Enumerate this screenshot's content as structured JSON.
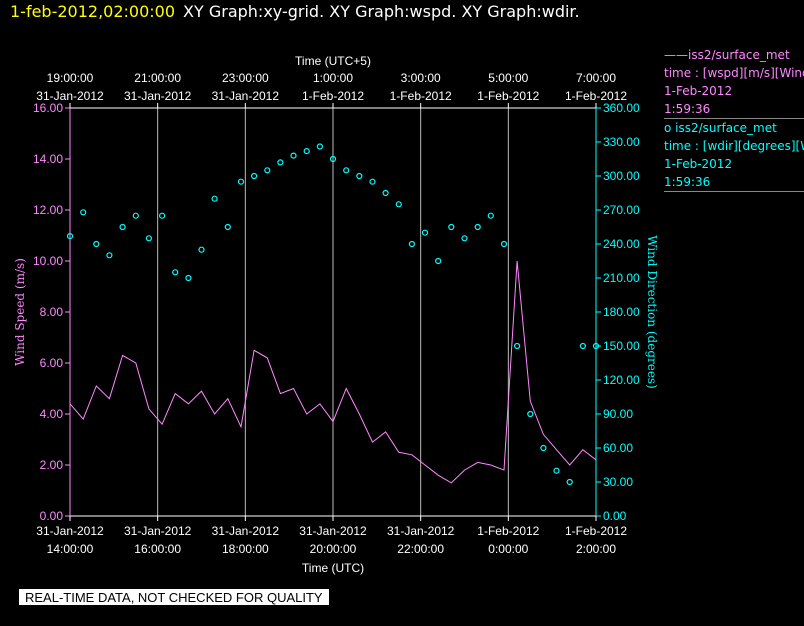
{
  "header": {
    "date": "1-feb-2012,02:00:00",
    "graphs": "XY Graph:xy-grid.  XY Graph:wspd.  XY Graph:wdir."
  },
  "legend": {
    "wspd": {
      "series": "——iss2/surface_met",
      "desc": "time : [wspd][m/s][Wind Speed]",
      "date": "1-Feb-2012",
      "time": "1:59:36",
      "color": "#ff88ff"
    },
    "wdir": {
      "series": "o  iss2/surface_met",
      "desc": "time : [wdir][degrees][Wind Direction]",
      "date": "1-Feb-2012",
      "time": "1:59:36",
      "color": "#00ffff"
    }
  },
  "banner": "REAL-TIME DATA, NOT CHECKED FOR QUALITY",
  "chart_data": {
    "type": "line",
    "top_axis": {
      "label": "Time (UTC+5)",
      "ticks": [
        {
          "time": "19:00:00",
          "date": "31-Jan-2012"
        },
        {
          "time": "21:00:00",
          "date": "31-Jan-2012"
        },
        {
          "time": "23:00:00",
          "date": "31-Jan-2012"
        },
        {
          "time": "1:00:00",
          "date": "1-Feb-2012"
        },
        {
          "time": "3:00:00",
          "date": "1-Feb-2012"
        },
        {
          "time": "5:00:00",
          "date": "1-Feb-2012"
        },
        {
          "time": "7:00:00",
          "date": "1-Feb-2012"
        }
      ]
    },
    "bottom_axis": {
      "label": "Time (UTC)",
      "ticks": [
        {
          "date": "31-Jan-2012",
          "time": "14:00:00"
        },
        {
          "date": "31-Jan-2012",
          "time": "16:00:00"
        },
        {
          "date": "31-Jan-2012",
          "time": "18:00:00"
        },
        {
          "date": "31-Jan-2012",
          "time": "20:00:00"
        },
        {
          "date": "31-Jan-2012",
          "time": "22:00:00"
        },
        {
          "date": "1-Feb-2012",
          "time": "0:00:00"
        },
        {
          "date": "1-Feb-2012",
          "time": "2:00:00"
        }
      ],
      "range": [
        "31-Jan-2012 14:00",
        "1-Feb-2012 02:00"
      ]
    },
    "left_axis": {
      "label": "Wind Speed (m/s)",
      "ylim": [
        0,
        16
      ],
      "ticks": [
        "0.00",
        "2.00",
        "4.00",
        "6.00",
        "8.00",
        "10.00",
        "12.00",
        "14.00",
        "16.00"
      ],
      "color": "#ff88ff"
    },
    "right_axis": {
      "label": "Wind Direction (degrees)",
      "ylim": [
        0,
        360
      ],
      "ticks": [
        "0.00",
        "30.00",
        "60.00",
        "90.00",
        "120.00",
        "150.00",
        "180.00",
        "210.00",
        "240.00",
        "270.00",
        "300.00",
        "330.00",
        "360.00"
      ],
      "color": "#00ffff"
    },
    "grid": "vertical lines at bottom-axis ticks",
    "series": [
      {
        "name": "wspd",
        "style": "line",
        "axis": "left",
        "x_hours": [
          0,
          0.3,
          0.6,
          0.9,
          1.2,
          1.5,
          1.8,
          2.1,
          2.4,
          2.7,
          3.0,
          3.3,
          3.6,
          3.9,
          4.2,
          4.5,
          4.8,
          5.1,
          5.4,
          5.7,
          6.0,
          6.3,
          6.6,
          6.9,
          7.2,
          7.5,
          7.8,
          8.1,
          8.4,
          8.7,
          9.0,
          9.3,
          9.6,
          9.9,
          10.2,
          10.5,
          10.8,
          11.1,
          11.4,
          11.7,
          12.0
        ],
        "values": [
          4.4,
          3.8,
          5.1,
          4.6,
          6.3,
          6.0,
          4.2,
          3.6,
          4.8,
          4.4,
          4.9,
          4.0,
          4.6,
          3.5,
          6.5,
          6.2,
          4.8,
          5.0,
          4.0,
          4.4,
          3.7,
          5.0,
          4.0,
          2.9,
          3.3,
          2.5,
          2.4,
          2.0,
          1.6,
          1.3,
          1.8,
          2.1,
          2.0,
          1.8,
          10.0,
          4.5,
          3.2,
          2.6,
          2.0,
          2.6,
          2.2
        ]
      },
      {
        "name": "wdir",
        "style": "scatter",
        "axis": "right",
        "x_hours": [
          0,
          0.3,
          0.6,
          0.9,
          1.2,
          1.5,
          1.8,
          2.1,
          2.4,
          2.7,
          3.0,
          3.3,
          3.6,
          3.9,
          4.2,
          4.5,
          4.8,
          5.1,
          5.4,
          5.7,
          6.0,
          6.3,
          6.6,
          6.9,
          7.2,
          7.5,
          7.8,
          8.1,
          8.4,
          8.7,
          9.0,
          9.3,
          9.6,
          9.9,
          10.2,
          10.5,
          10.8,
          11.1,
          11.4,
          11.7,
          12.0
        ],
        "values": [
          247,
          268,
          240,
          230,
          255,
          265,
          245,
          265,
          215,
          210,
          235,
          280,
          255,
          295,
          300,
          305,
          312,
          318,
          322,
          326,
          315,
          305,
          300,
          295,
          285,
          275,
          240,
          250,
          225,
          255,
          245,
          255,
          265,
          240,
          150,
          90,
          60,
          40,
          30,
          150,
          150
        ]
      }
    ]
  }
}
